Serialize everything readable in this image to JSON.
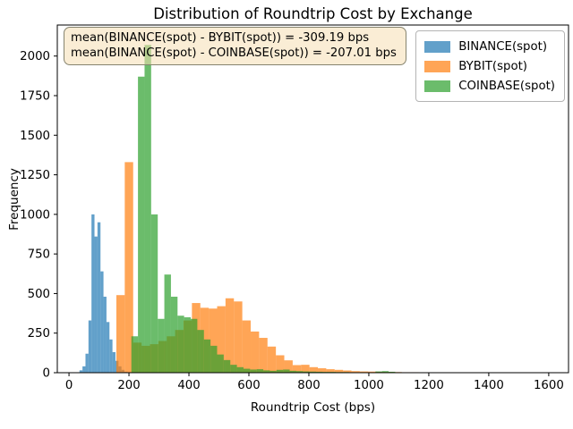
{
  "title": "Distribution of Roundtrip Cost by Exchange",
  "annotation": {
    "lines": [
      "mean(BINANCE(spot) - BYBIT(spot)) = -309.19 bps",
      "mean(BINANCE(spot) - COINBASE(spot)) = -207.01 bps"
    ]
  },
  "legend": [
    {
      "label": "BINANCE(spot)",
      "color": "#1f77b4"
    },
    {
      "label": "BYBIT(spot)",
      "color": "#ff7f0e"
    },
    {
      "label": "COINBASE(spot)",
      "color": "#2ca02c"
    }
  ],
  "chart_data": {
    "type": "histogram",
    "title": "Distribution of Roundtrip Cost by Exchange",
    "xlabel": "Roundtrip Cost (bps)",
    "ylabel": "Frequency",
    "xlim": [
      -39,
      1666
    ],
    "ylim": [
      0,
      2196
    ],
    "x_ticks": [
      0,
      200,
      400,
      600,
      800,
      1000,
      1200,
      1400,
      1600
    ],
    "y_ticks": [
      0,
      250,
      500,
      750,
      1000,
      1250,
      1500,
      1750,
      2000
    ],
    "alpha": 0.7,
    "grid": false,
    "legend_position": "upper right",
    "series": [
      {
        "name": "BINANCE(spot)",
        "color": "#1f77b4",
        "bin_start": 35,
        "bin_width": 10,
        "counts": [
          15,
          40,
          120,
          330,
          1000,
          860,
          950,
          640,
          480,
          320,
          210,
          130,
          75,
          40,
          18,
          6
        ]
      },
      {
        "name": "BYBIT(spot)",
        "color": "#ff7f0e",
        "bin_start": 158,
        "bin_width": 28,
        "counts": [
          490,
          1330,
          190,
          170,
          180,
          200,
          230,
          270,
          330,
          440,
          410,
          405,
          420,
          470,
          450,
          330,
          260,
          220,
          165,
          110,
          78,
          48,
          50,
          35,
          28,
          22,
          18,
          14,
          10,
          8,
          7,
          6,
          5,
          4,
          3,
          3,
          2,
          2,
          2,
          1,
          1,
          1,
          0,
          0,
          0,
          1,
          1,
          2,
          1,
          2
        ]
      },
      {
        "name": "COINBASE(spot)",
        "color": "#2ca02c",
        "bin_start": 208,
        "bin_width": 22,
        "counts": [
          230,
          1870,
          2070,
          1000,
          340,
          620,
          480,
          360,
          350,
          340,
          270,
          210,
          170,
          115,
          80,
          50,
          35,
          25,
          20,
          22,
          15,
          12,
          18,
          20,
          12,
          10,
          8,
          7,
          6,
          5,
          5,
          4,
          4,
          3,
          3,
          3,
          2,
          8,
          10,
          6,
          3,
          2,
          2,
          1,
          1,
          1,
          1,
          1,
          2,
          1
        ]
      }
    ]
  }
}
